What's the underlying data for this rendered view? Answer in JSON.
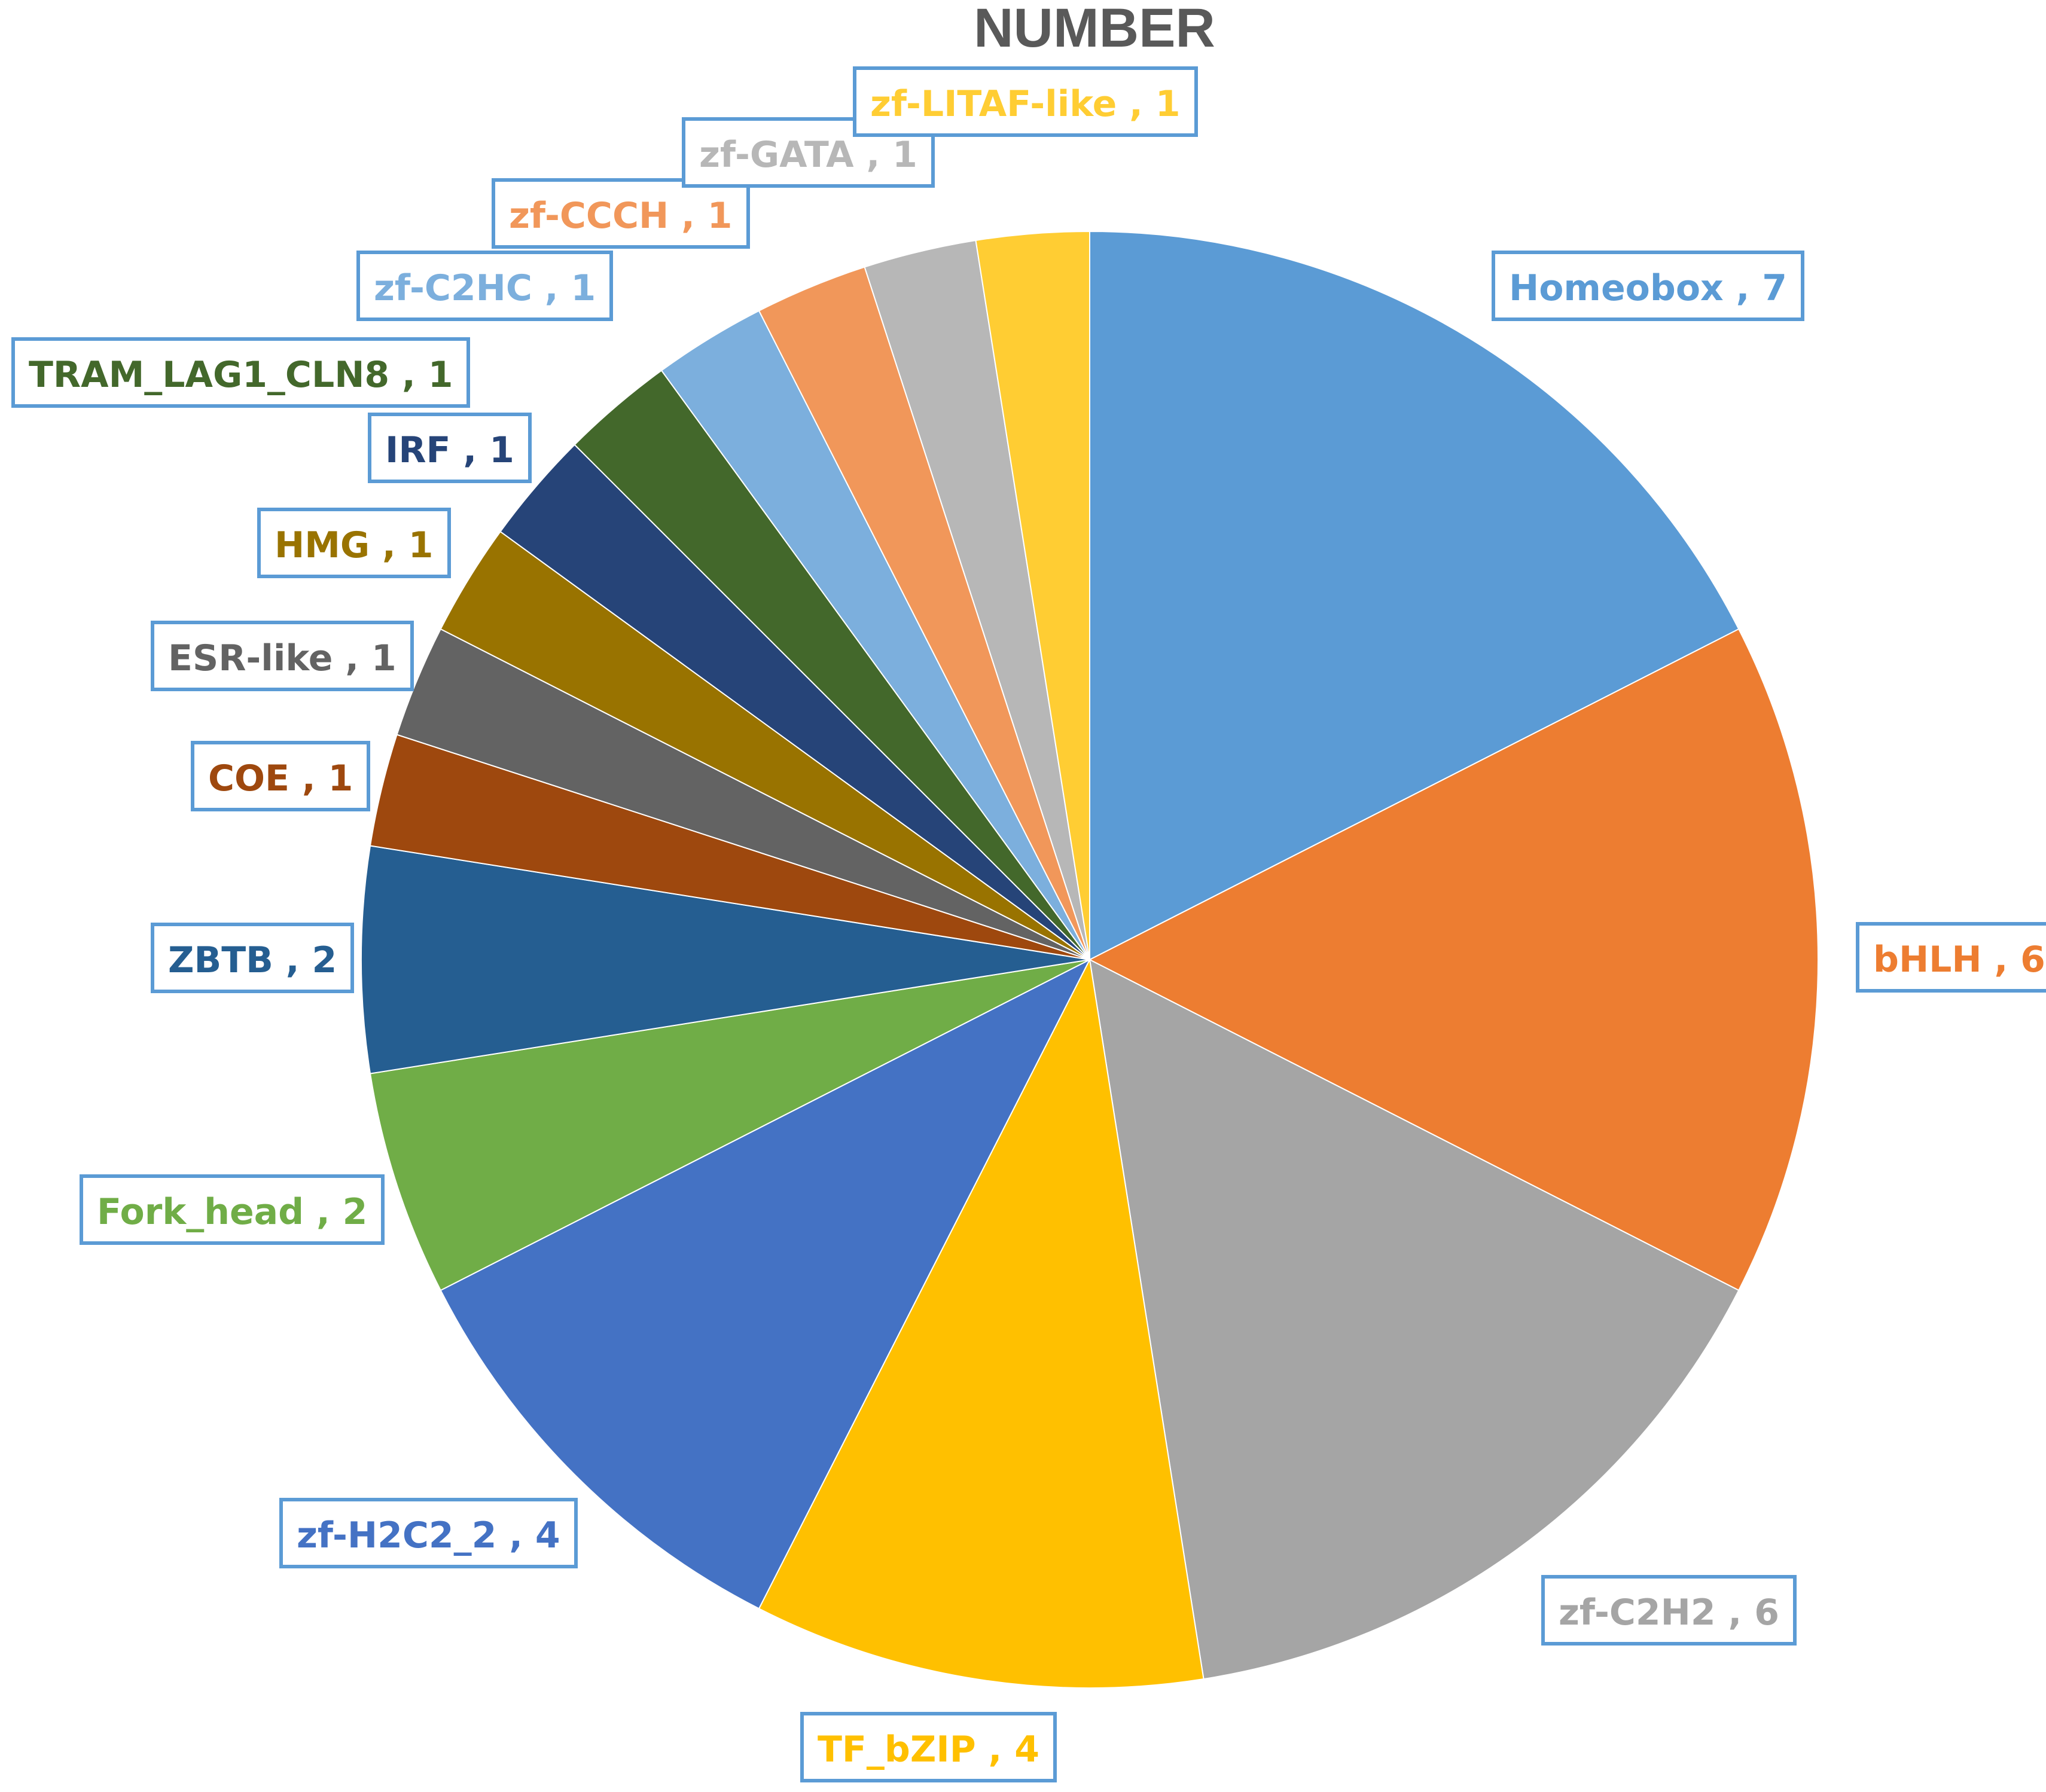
{
  "chart_data": {
    "type": "pie",
    "title": "NUMBER",
    "slices": [
      {
        "name": "Homeobox",
        "value": 7,
        "label": "Homeobox , 7",
        "color": "#5b9bd5",
        "text_color": "#5b9bd5"
      },
      {
        "name": "bHLH",
        "value": 6,
        "label": "bHLH , 6",
        "color": "#ed7d31",
        "text_color": "#ed7d31"
      },
      {
        "name": "zf-C2H2",
        "value": 6,
        "label": "zf-C2H2 , 6",
        "color": "#a5a5a5",
        "text_color": "#a5a5a5"
      },
      {
        "name": "TF_bZIP",
        "value": 4,
        "label": "TF_bZIP , 4",
        "color": "#ffc000",
        "text_color": "#ffc000"
      },
      {
        "name": "zf-H2C2_2",
        "value": 4,
        "label": "zf-H2C2_2 , 4",
        "color": "#4472c4",
        "text_color": "#4472c4"
      },
      {
        "name": "Fork_head",
        "value": 2,
        "label": "Fork_head , 2",
        "color": "#70ad47",
        "text_color": "#70ad47"
      },
      {
        "name": "ZBTB",
        "value": 2,
        "label": "ZBTB , 2",
        "color": "#255e91",
        "text_color": "#255e91"
      },
      {
        "name": "COE",
        "value": 1,
        "label": "COE , 1",
        "color": "#9e480e",
        "text_color": "#9e480e"
      },
      {
        "name": "ESR-like",
        "value": 1,
        "label": "ESR-like , 1",
        "color": "#636363",
        "text_color": "#636363"
      },
      {
        "name": "HMG",
        "value": 1,
        "label": "HMG , 1",
        "color": "#997300",
        "text_color": "#997300"
      },
      {
        "name": "IRF",
        "value": 1,
        "label": "IRF , 1",
        "color": "#264478",
        "text_color": "#264478"
      },
      {
        "name": "TRAM_LAG1_CLN8",
        "value": 1,
        "label": "TRAM_LAG1_CLN8 , 1",
        "color": "#43682b",
        "text_color": "#43682b"
      },
      {
        "name": "zf-C2HC",
        "value": 1,
        "label": "zf-C2HC , 1",
        "color": "#7cafdd",
        "text_color": "#7cafdd"
      },
      {
        "name": "zf-CCCH",
        "value": 1,
        "label": "zf-CCCH , 1",
        "color": "#f1975a",
        "text_color": "#f1975a"
      },
      {
        "name": "zf-GATA",
        "value": 1,
        "label": "zf-GATA , 1",
        "color": "#b7b7b7",
        "text_color": "#b7b7b7"
      },
      {
        "name": "zf-LITAF-like",
        "value": 1,
        "label": "zf-LITAF-like , 1",
        "color": "#ffcd33",
        "text_color": "#ffcd33"
      }
    ],
    "start_angle": "12 o'clock",
    "direction": "clockwise",
    "legend": "none",
    "data_labels": "outside, boxed"
  }
}
